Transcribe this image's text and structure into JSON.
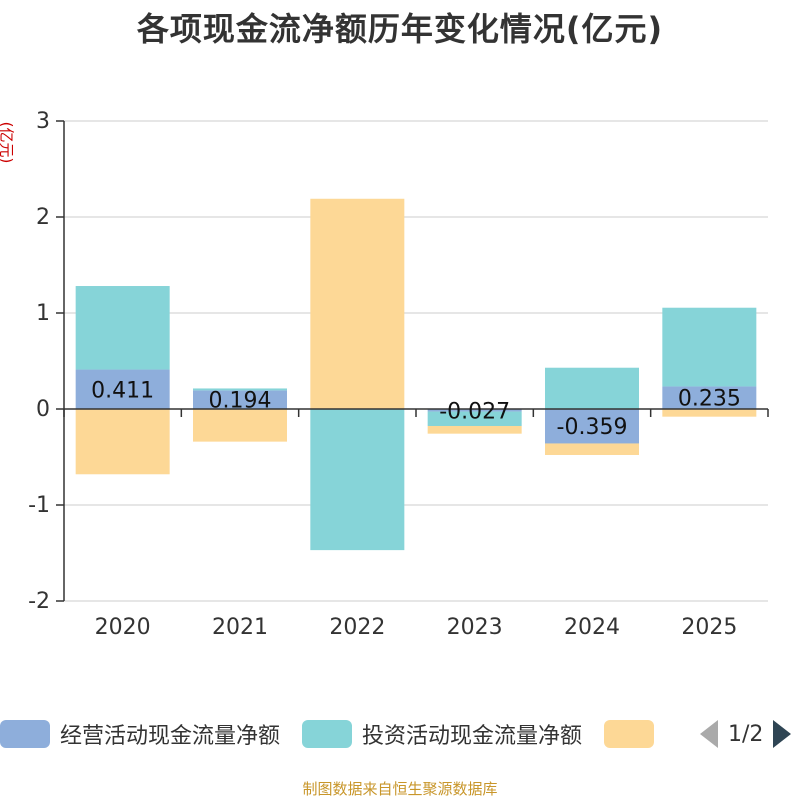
{
  "title": "各项现金流净额历年变化情况(亿元)",
  "unit_label": "(亿元)",
  "source": "制图数据来自恒生聚源数据库",
  "legend": {
    "items": [
      {
        "label": "经营活动现金流量净额",
        "color": "#8eaedb"
      },
      {
        "label": "投资活动现金流量净额",
        "color": "#86d4d8"
      },
      {
        "label": "",
        "color": "#fdd896"
      }
    ],
    "page": "1/2"
  },
  "chart_data": {
    "type": "bar",
    "stacked": true,
    "categories": [
      "2020",
      "2021",
      "2022",
      "2023",
      "2024",
      "2025"
    ],
    "ylim": [
      -2,
      3
    ],
    "yticks": [
      3,
      2,
      1,
      0,
      -1,
      -2
    ],
    "grid": true,
    "series": [
      {
        "name": "经营活动现金流量净额",
        "color": "#8eaedb",
        "values": [
          0.411,
          0.194,
          0.0,
          -0.027,
          -0.359,
          0.235
        ],
        "labels": [
          "0.411",
          "0.194",
          "",
          "-0.027",
          "-0.359",
          "0.235"
        ]
      },
      {
        "name": "投资活动现金流量净额",
        "color": "#86d4d8",
        "values": [
          0.87,
          0.02,
          -1.47,
          -0.15,
          0.43,
          0.82
        ]
      },
      {
        "color": "#fdd896",
        "values": [
          -0.68,
          -0.34,
          2.19,
          -0.08,
          -0.12,
          -0.08
        ]
      }
    ]
  }
}
